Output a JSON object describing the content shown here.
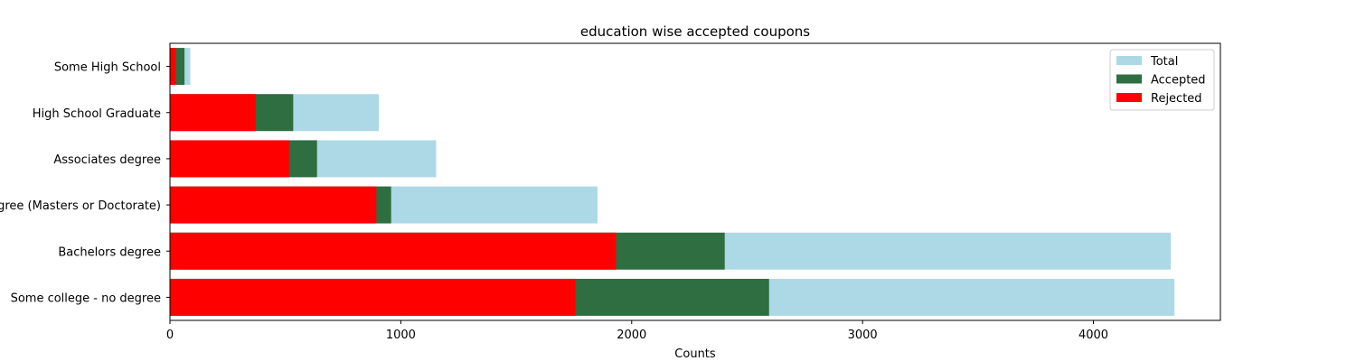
{
  "chart_data": {
    "type": "bar",
    "orientation": "horizontal",
    "title": "education wise accepted coupons",
    "xlabel": "Counts",
    "ylabel": "",
    "xlim": [
      0,
      4550
    ],
    "xticks": [
      0,
      1000,
      2000,
      3000,
      4000
    ],
    "xtick_labels": [
      "0",
      "1000",
      "2000",
      "3000",
      "4000"
    ],
    "categories": [
      "Some High School",
      "High School Graduate",
      "Associates degree",
      "Graduate degree (Masters or Doctorate)",
      "Bachelors degree",
      "Some college - no degree"
    ],
    "series": [
      {
        "name": "Total",
        "color": "#add8e6",
        "values": [
          88,
          905,
          1153,
          1852,
          4335,
          4351
        ]
      },
      {
        "name": "Accepted",
        "color": "#2e6e40",
        "values": [
          63,
          534,
          637,
          958,
          2403,
          2595
        ]
      },
      {
        "name": "Rejected",
        "color": "#ff0000",
        "values": [
          25,
          371,
          516,
          894,
          1932,
          1756
        ]
      }
    ],
    "legend": {
      "placement": "top-right"
    },
    "grid": false
  }
}
